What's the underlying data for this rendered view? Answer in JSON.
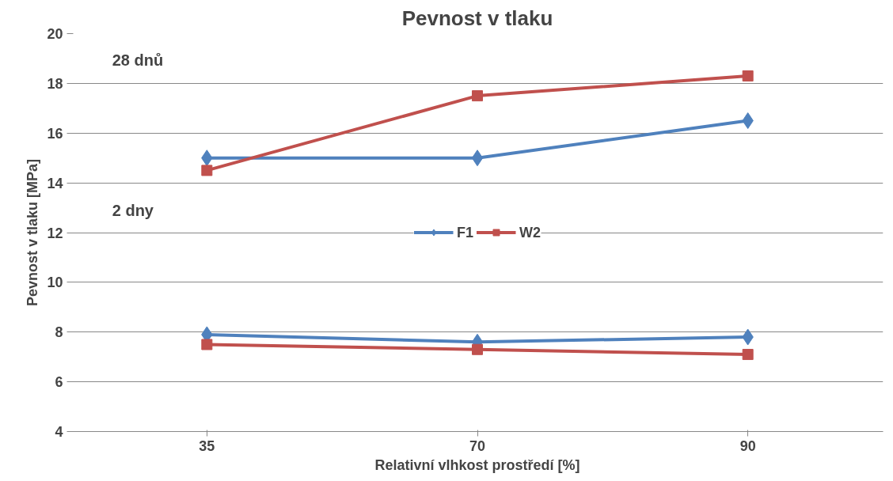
{
  "chart_data": {
    "type": "line",
    "title": "Pevnost v tlaku",
    "xlabel": "Relativní vlhkost prostředí [%]",
    "ylabel": "Pevnost v tlaku [MPa]",
    "categories": [
      "35",
      "70",
      "90"
    ],
    "series": [
      {
        "name": "F1",
        "color": "#4f81bd",
        "marker": "diamond",
        "values": [
          15,
          15,
          16.5
        ]
      },
      {
        "name": "W2",
        "color": "#c0504d",
        "marker": "square",
        "values": [
          14.5,
          17.5,
          18.3
        ]
      },
      {
        "color": "#4f81bd",
        "marker": "diamond",
        "values": [
          7.9,
          7.6,
          7.8
        ]
      },
      {
        "color": "#c0504d",
        "marker": "square",
        "values": [
          7.5,
          7.3,
          7.1
        ]
      }
    ],
    "ylim": [
      4,
      20
    ],
    "yticks": [
      4,
      6,
      8,
      10,
      12,
      14,
      16,
      18,
      20
    ],
    "grid": "y",
    "legend": "center",
    "line_style": "solid",
    "annotations": [
      "28 dnů",
      "2 dny"
    ]
  }
}
